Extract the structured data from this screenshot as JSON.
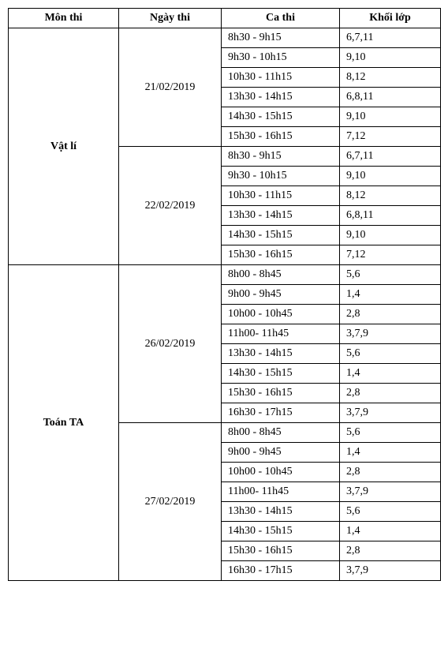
{
  "headers": {
    "subject": "Môn thi",
    "date": "Ngày thi",
    "session": "Ca thi",
    "grade": "Khối lớp"
  },
  "col_widths": {
    "subject": 140,
    "date": 130,
    "session": 150,
    "grade": 128
  },
  "subjects": [
    {
      "name": "Vật lí",
      "dates": [
        {
          "date": "21/02/2019",
          "sessions": [
            {
              "time": "8h30 - 9h15",
              "grade": "6,7,11"
            },
            {
              "time": "9h30 - 10h15",
              "grade": "9,10"
            },
            {
              "time": "10h30 - 11h15",
              "grade": "8,12"
            },
            {
              "time": "13h30 - 14h15",
              "grade": "6,8,11"
            },
            {
              "time": "14h30 - 15h15",
              "grade": "9,10"
            },
            {
              "time": "15h30 - 16h15",
              "grade": "7,12"
            }
          ]
        },
        {
          "date": "22/02/2019",
          "sessions": [
            {
              "time": "8h30 - 9h15",
              "grade": "6,7,11"
            },
            {
              "time": "9h30 - 10h15",
              "grade": "9,10"
            },
            {
              "time": "10h30 - 11h15",
              "grade": "8,12"
            },
            {
              "time": "13h30 - 14h15",
              "grade": "6,8,11"
            },
            {
              "time": "14h30 - 15h15",
              "grade": "9,10"
            },
            {
              "time": "15h30 - 16h15",
              "grade": "7,12"
            }
          ]
        }
      ]
    },
    {
      "name": "Toán TA",
      "dates": [
        {
          "date": "26/02/2019",
          "sessions": [
            {
              "time": "8h00 - 8h45",
              "grade": "5,6"
            },
            {
              "time": "9h00 - 9h45",
              "grade": "1,4"
            },
            {
              "time": "10h00 - 10h45",
              "grade": "2,8"
            },
            {
              "time": "11h00- 11h45",
              "grade": "3,7,9"
            },
            {
              "time": "13h30 - 14h15",
              "grade": "5,6"
            },
            {
              "time": "14h30 - 15h15",
              "grade": "1,4"
            },
            {
              "time": "15h30 - 16h15",
              "grade": "2,8"
            },
            {
              "time": "16h30 - 17h15",
              "grade": "3,7,9"
            }
          ]
        },
        {
          "date": "27/02/2019",
          "sessions": [
            {
              "time": "8h00 - 8h45",
              "grade": "5,6"
            },
            {
              "time": "9h00 - 9h45",
              "grade": "1,4"
            },
            {
              "time": "10h00 - 10h45",
              "grade": "2,8"
            },
            {
              "time": "11h00- 11h45",
              "grade": "3,7,9"
            },
            {
              "time": "13h30 - 14h15",
              "grade": "5,6"
            },
            {
              "time": "14h30 - 15h15",
              "grade": "1,4"
            },
            {
              "time": "15h30 - 16h15",
              "grade": "2,8"
            },
            {
              "time": "16h30 - 17h15",
              "grade": "3,7,9"
            }
          ]
        }
      ]
    }
  ]
}
